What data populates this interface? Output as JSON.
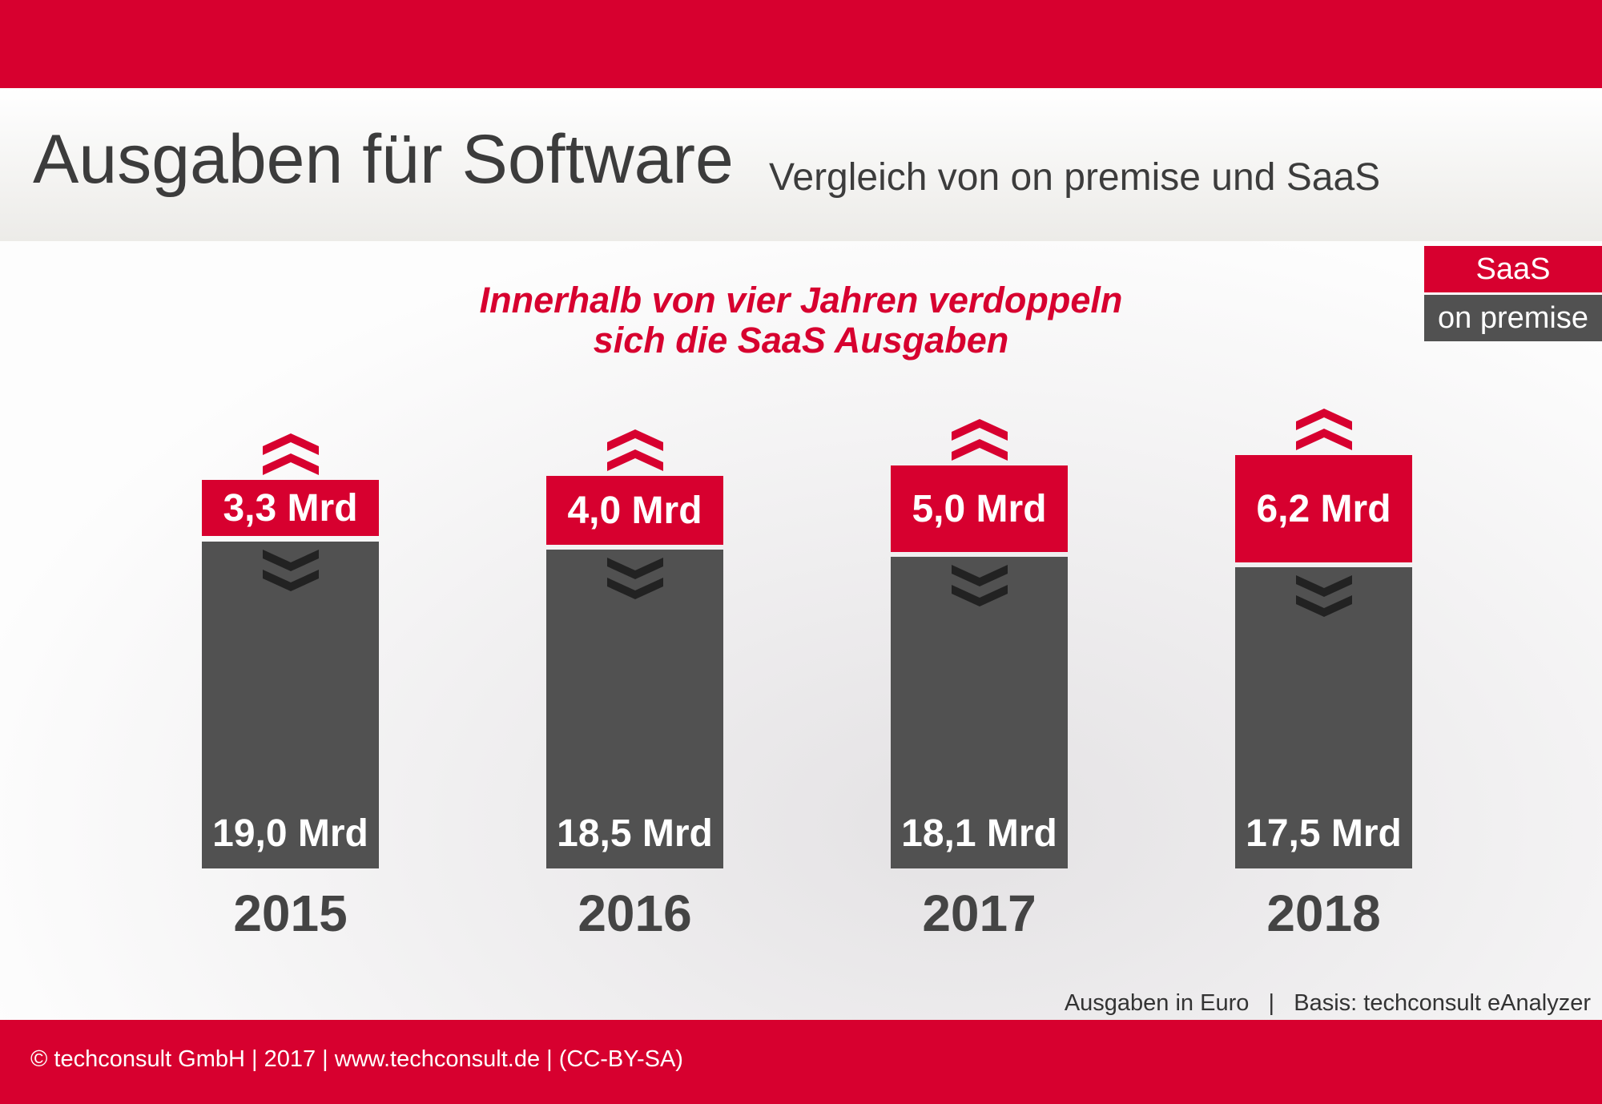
{
  "header": {
    "title": "Ausgaben für Software",
    "subtitle": "Vergleich von on premise und SaaS"
  },
  "headline": [
    "Innerhalb von vier Jahren verdoppeln",
    "sich die SaaS Ausgaben"
  ],
  "colors": {
    "saas": "#d7002f",
    "on_premise": "#515151"
  },
  "chart_data": {
    "type": "bar",
    "stacked": true,
    "title": "Ausgaben für Software",
    "categories": [
      "2015",
      "2016",
      "2017",
      "2018"
    ],
    "series": [
      {
        "name": "SaaS",
        "values": [
          3.3,
          4.0,
          5.0,
          6.2
        ],
        "labels": [
          "3,3 Mrd",
          "4,0 Mrd",
          "5,0 Mrd",
          "6,2 Mrd"
        ]
      },
      {
        "name": "on premise",
        "values": [
          19.0,
          18.5,
          18.1,
          17.5
        ],
        "labels": [
          "19,0 Mrd",
          "18,5 Mrd",
          "18,1 Mrd",
          "17,5 Mrd"
        ]
      }
    ],
    "unit": "Mrd Euro",
    "legend": [
      "SaaS",
      "on premise"
    ],
    "legend_position": "top-right"
  },
  "note": "Ausgaben in Euro   |   Basis: techconsult eAnalyzer",
  "footer": "© techconsult GmbH | 2017 | www.techconsult.de | (CC-BY-SA)"
}
